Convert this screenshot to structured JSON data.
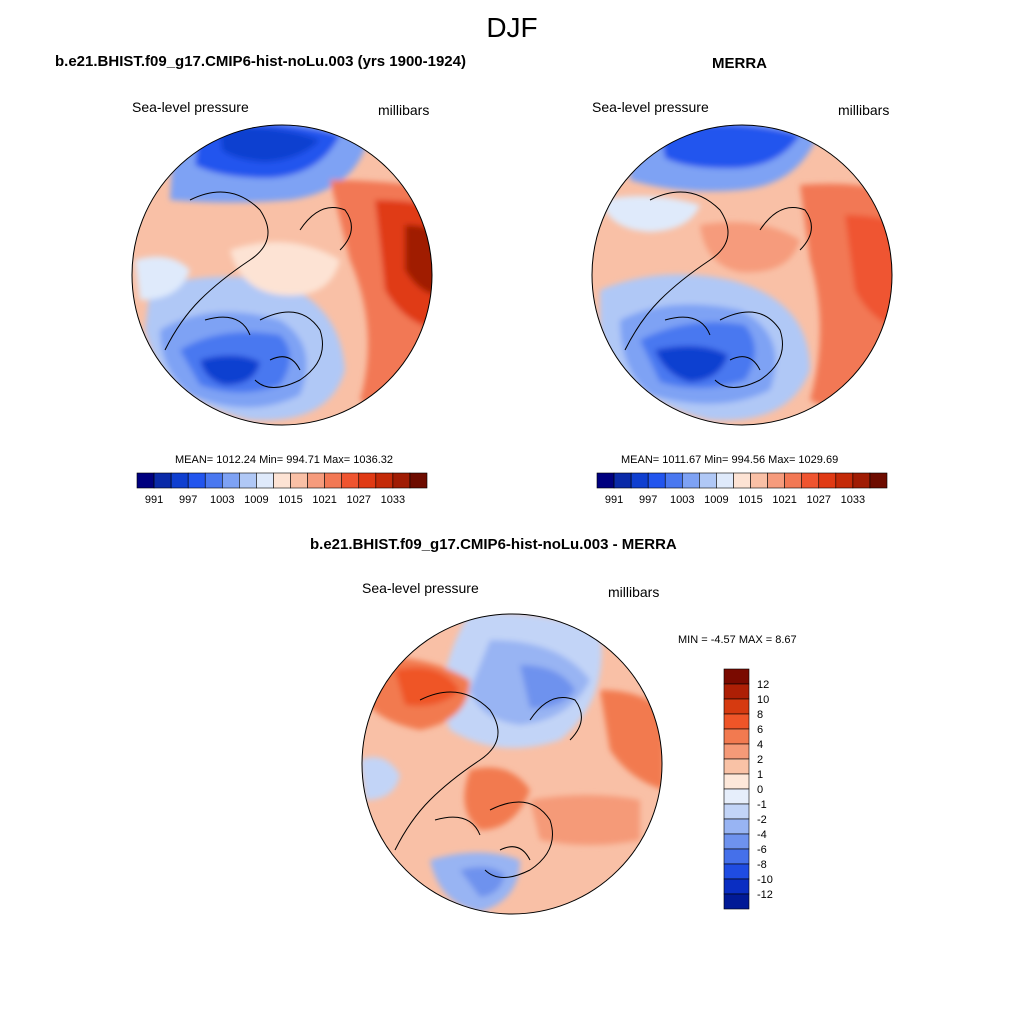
{
  "main_title": "DJF",
  "panels": [
    {
      "title": "b.e21.BHIST.f09_g17.CMIP6-hist-noLu.003 (yrs 1900-1924)",
      "left_label": "Sea-level pressure",
      "right_label": "millibars",
      "stats": "MEAN= 1012.24  Min= 994.71  Max= 1036.32"
    },
    {
      "title": "MERRA",
      "left_label": "Sea-level pressure",
      "right_label": "millibars",
      "stats": "MEAN= 1011.67  Min= 994.56  Max= 1029.69"
    },
    {
      "title": "b.e21.BHIST.f09_g17.CMIP6-hist-noLu.003 - MERRA",
      "left_label": "Sea-level pressure",
      "right_label": "millibars",
      "stats": "MIN =  -4.57 MAX =   8.67"
    }
  ],
  "abs_colorbar": {
    "tick_labels": [
      "991",
      "997",
      "1003",
      "1009",
      "1015",
      "1021",
      "1027",
      "1033"
    ],
    "colors": [
      "#00007f",
      "#0a2aa8",
      "#0f3fd0",
      "#2255ee",
      "#4a78f0",
      "#7ea2f4",
      "#b0c8f6",
      "#dfeafb",
      "#fde3d4",
      "#f9c0a6",
      "#f69b7c",
      "#f27854",
      "#ef5530",
      "#e03a14",
      "#c42a08",
      "#a01c04",
      "#6e0c00"
    ]
  },
  "diff_colorbar": {
    "tick_labels": [
      "12",
      "10",
      "8",
      "6",
      "4",
      "2",
      "1",
      "0",
      "-1",
      "-2",
      "-4",
      "-6",
      "-8",
      "-10",
      "-12"
    ],
    "colors": [
      "#7a0a00",
      "#ad1f05",
      "#d63a10",
      "#ef5528",
      "#f27a50",
      "#f59a78",
      "#f9c2a6",
      "#fde8da",
      "#e6eefb",
      "#c2d4f7",
      "#98b4f3",
      "#6e92ee",
      "#4570ea",
      "#1f4ce2",
      "#0a2ec2",
      "#011a96"
    ]
  }
}
